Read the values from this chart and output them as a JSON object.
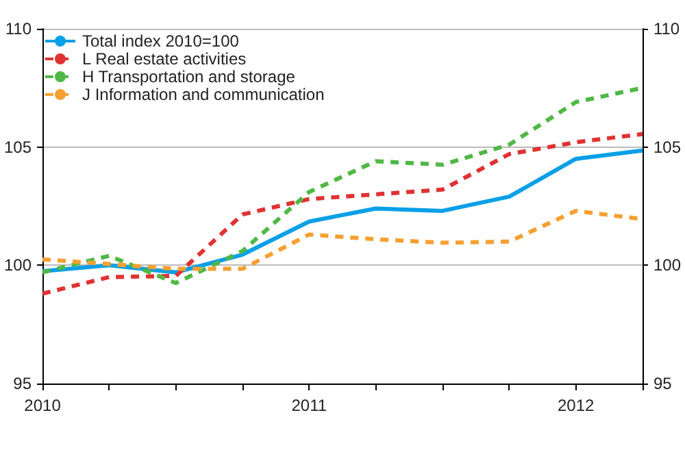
{
  "chart_data": {
    "type": "line",
    "categories": [
      "2010",
      null,
      null,
      null,
      "2011",
      null,
      null,
      null,
      "2012",
      null
    ],
    "series": [
      {
        "name": "Total index 2010=100",
        "color": "#0aa0e6",
        "line_style": "solid",
        "values": [
          99.75,
          100.0,
          99.7,
          100.45,
          101.85,
          102.4,
          102.3,
          102.9,
          104.5,
          104.85
        ]
      },
      {
        "name": "L Real estate activities",
        "color": "#e03232",
        "line_style": "dashed",
        "values": [
          98.8,
          99.5,
          99.55,
          102.15,
          102.8,
          103.0,
          103.2,
          104.7,
          105.2,
          105.55
        ]
      },
      {
        "name": "H Transportation and storage",
        "color": "#50b846",
        "line_style": "dashed",
        "values": [
          99.7,
          100.4,
          99.25,
          100.6,
          103.1,
          104.4,
          104.25,
          105.1,
          106.9,
          107.5
        ]
      },
      {
        "name": "J Information and communication",
        "color": "#f5a032",
        "line_style": "dashed",
        "values": [
          100.25,
          100.05,
          99.85,
          99.85,
          101.3,
          101.1,
          100.95,
          101.0,
          102.3,
          101.95
        ]
      }
    ],
    "ylim": [
      95,
      110
    ],
    "yticks": [
      95,
      100,
      105,
      110
    ],
    "y2lim": [
      95,
      110
    ],
    "y2ticks": [
      95,
      100,
      105,
      110
    ],
    "grid": "y",
    "legend": "top left",
    "marker": "none"
  }
}
